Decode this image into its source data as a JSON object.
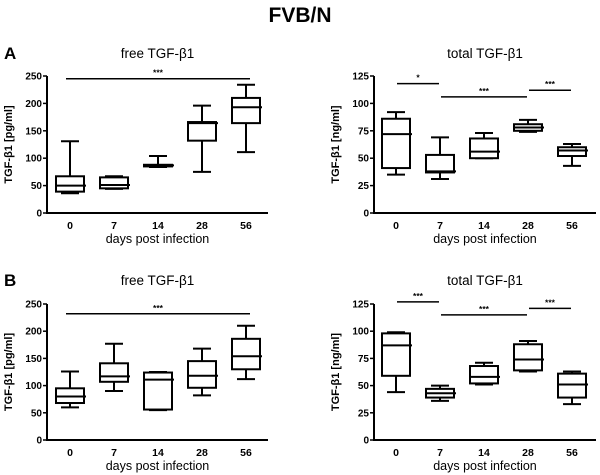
{
  "figure": {
    "title": "FVB/N",
    "panel_labels": [
      "A",
      "B"
    ]
  },
  "chart_data": [
    {
      "type": "box",
      "panel": "A",
      "position": "top-left",
      "title": "free TGF-β1",
      "xlabel": "days post infection",
      "ylabel": "TGF-β1 [pg/ml]",
      "categories": [
        "0",
        "7",
        "14",
        "28",
        "56"
      ],
      "ylim": [
        0,
        250
      ],
      "yticks": [
        0,
        50,
        100,
        150,
        200,
        250
      ],
      "boxes": [
        {
          "min": 36,
          "q1": 39,
          "median": 50,
          "q3": 67,
          "max": 131
        },
        {
          "min": 44,
          "q1": 45,
          "median": 51,
          "q3": 65,
          "max": 67
        },
        {
          "min": 84,
          "q1": 85,
          "median": 87,
          "q3": 88,
          "max": 104
        },
        {
          "min": 75,
          "q1": 132,
          "median": 164,
          "q3": 166,
          "max": 196
        },
        {
          "min": 111,
          "q1": 164,
          "median": 193,
          "q3": 210,
          "max": 234
        }
      ],
      "significance": [
        {
          "from": 0,
          "to": 4,
          "label": "***",
          "y": 245
        }
      ]
    },
    {
      "type": "box",
      "panel": "A",
      "position": "top-right",
      "title": "total TGF-β1",
      "xlabel": "days post infection",
      "ylabel": "TGF-β1 [ng/ml]",
      "categories": [
        "0",
        "7",
        "14",
        "28",
        "56"
      ],
      "ylim": [
        0,
        125
      ],
      "yticks": [
        0,
        25,
        50,
        75,
        100,
        125
      ],
      "boxes": [
        {
          "min": 35,
          "q1": 41,
          "median": 72,
          "q3": 86,
          "max": 92
        },
        {
          "min": 31,
          "q1": 37,
          "median": 38,
          "q3": 53,
          "max": 69
        },
        {
          "min": 50,
          "q1": 50,
          "median": 56,
          "q3": 68,
          "max": 73
        },
        {
          "min": 74,
          "q1": 75,
          "median": 78,
          "q3": 81,
          "max": 85
        },
        {
          "min": 43,
          "q1": 52,
          "median": 57,
          "q3": 60,
          "max": 63
        }
      ],
      "significance": [
        {
          "from": 0,
          "to": 1,
          "label": "*",
          "y": 118
        },
        {
          "from": 1,
          "to": 3,
          "label": "***",
          "y": 106
        },
        {
          "from": 3,
          "to": 4,
          "label": "***",
          "y": 112
        }
      ]
    },
    {
      "type": "box",
      "panel": "B",
      "position": "bottom-left",
      "title": "free TGF-β1",
      "xlabel": "days post infection",
      "ylabel": "TGF-β1 [pg/ml]",
      "categories": [
        "0",
        "7",
        "14",
        "28",
        "56"
      ],
      "ylim": [
        0,
        250
      ],
      "yticks": [
        0,
        50,
        100,
        150,
        200,
        250
      ],
      "boxes": [
        {
          "min": 60,
          "q1": 68,
          "median": 80,
          "q3": 95,
          "max": 126
        },
        {
          "min": 90,
          "q1": 107,
          "median": 117,
          "q3": 141,
          "max": 177
        },
        {
          "min": 55,
          "q1": 56,
          "median": 111,
          "q3": 124,
          "max": 125
        },
        {
          "min": 82,
          "q1": 96,
          "median": 118,
          "q3": 145,
          "max": 168
        },
        {
          "min": 112,
          "q1": 130,
          "median": 154,
          "q3": 186,
          "max": 210
        }
      ],
      "significance": [
        {
          "from": 0,
          "to": 4,
          "label": "***",
          "y": 232
        }
      ]
    },
    {
      "type": "box",
      "panel": "B",
      "position": "bottom-right",
      "title": "total TGF-β1",
      "xlabel": "days post infection",
      "ylabel": "TGF-β1 [ng/ml]",
      "categories": [
        "0",
        "7",
        "14",
        "28",
        "56"
      ],
      "ylim": [
        0,
        125
      ],
      "yticks": [
        0,
        25,
        50,
        75,
        100,
        125
      ],
      "boxes": [
        {
          "min": 44,
          "q1": 59,
          "median": 87,
          "q3": 98,
          "max": 99
        },
        {
          "min": 36,
          "q1": 39,
          "median": 43,
          "q3": 47,
          "max": 50
        },
        {
          "min": 51,
          "q1": 52,
          "median": 58,
          "q3": 68,
          "max": 71
        },
        {
          "min": 63,
          "q1": 64,
          "median": 74,
          "q3": 88,
          "max": 91
        },
        {
          "min": 33,
          "q1": 39,
          "median": 51,
          "q3": 61,
          "max": 63
        }
      ],
      "significance": [
        {
          "from": 0,
          "to": 1,
          "label": "***",
          "y": 127
        },
        {
          "from": 1,
          "to": 3,
          "label": "***",
          "y": 115
        },
        {
          "from": 3,
          "to": 4,
          "label": "***",
          "y": 121
        }
      ]
    }
  ]
}
